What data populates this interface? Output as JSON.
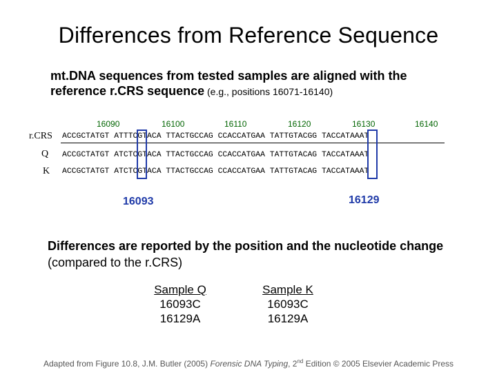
{
  "title": "Differences from Reference Sequence",
  "intro": {
    "bold": "mt.DNA sequences from tested samples are aligned with the reference r.CRS sequence",
    "small": " (e.g., positions 16071-16140)"
  },
  "positions": [
    "16090",
    "16100",
    "16110",
    "16120",
    "16130",
    "16140"
  ],
  "rows": [
    {
      "label": "r.CRS",
      "seq": "ACCGCTATGT ATTTCGTACA TTACTGCCAG CCACCATGAA TATTGTACGG TACCATAAAT"
    },
    {
      "label": "Q",
      "seq": "ACCGCTATGT ATCTCGTACA TTACTGCCAG CCACCATGAA TATTGTACAG TACCATAAAT"
    },
    {
      "label": "K",
      "seq": "ACCGCTATGT ATCTCGTACA TTACTGCCAG CCACCATGAA TATTGTACAG TACCATAAAT"
    }
  ],
  "markers": [
    "16093",
    "16129"
  ],
  "differences": {
    "bold": "Differences are reported by the position and the nucleotide change",
    "plain": " (compared to the r.CRS)"
  },
  "samples": [
    {
      "name": "Sample Q",
      "changes": [
        "16093C",
        "16129A"
      ]
    },
    {
      "name": "Sample K",
      "changes": [
        "16093C",
        "16129A"
      ]
    }
  ],
  "footer": {
    "pre": "Adapted from Figure 10.8, J.M. Butler (2005) ",
    "book": "Forensic DNA Typing",
    "mid": ", 2",
    "sup": "nd",
    "post": " Edition © 2005 Elsevier Academic Press"
  },
  "colors": {
    "highlight": "#1f3aa8",
    "position_labels": "#006400"
  }
}
